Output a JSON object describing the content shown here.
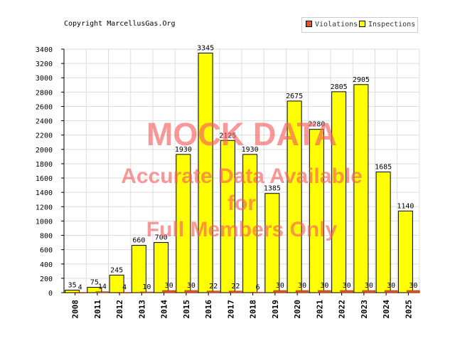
{
  "header": {
    "copyright": "Copyright MarcellusGas.Org"
  },
  "legend": {
    "items": [
      {
        "label": "Violations",
        "color": "#e8521e"
      },
      {
        "label": "Inspections",
        "color": "#ffff00"
      }
    ]
  },
  "watermark": {
    "line1": "MOCK DATA",
    "line2": "Accurate Data Available",
    "line3": "for",
    "line4": "Full Members Only"
  },
  "chart_data": {
    "type": "bar",
    "categories": [
      "2008",
      "2011",
      "2012",
      "2013",
      "2014",
      "2015",
      "2016",
      "2017",
      "2018",
      "2019",
      "2020",
      "2021",
      "2022",
      "2023",
      "2024",
      "2025"
    ],
    "series": [
      {
        "name": "Inspections",
        "color": "#ffff00",
        "values": [
          35,
          75,
          245,
          660,
          700,
          1930,
          3345,
          2125,
          1930,
          1385,
          2675,
          2280,
          2805,
          2905,
          1685,
          1140
        ]
      },
      {
        "name": "Violations",
        "color": "#e8521e",
        "values": [
          4,
          14,
          4,
          10,
          30,
          30,
          22,
          22,
          6,
          30,
          30,
          30,
          30,
          30,
          30,
          30
        ]
      }
    ],
    "ylim": [
      0,
      3400
    ],
    "yticks": [
      0,
      200,
      400,
      600,
      800,
      1000,
      1200,
      1400,
      1600,
      1800,
      2000,
      2200,
      2400,
      2600,
      2800,
      3000,
      3200,
      3400
    ],
    "grid": true,
    "legend_position": "top-right"
  }
}
